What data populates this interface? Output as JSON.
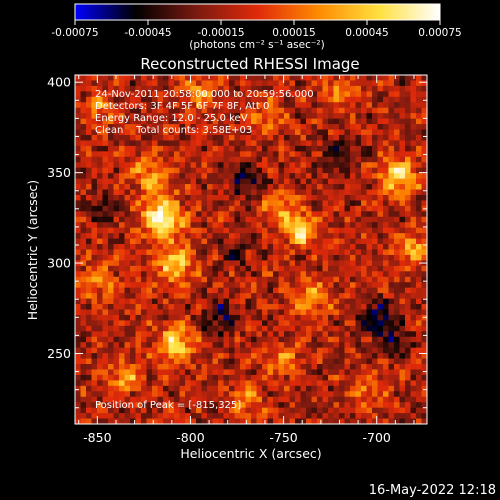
{
  "colorbar": {
    "min": -0.00075,
    "max": 0.00075,
    "tick_values": [
      -0.00075,
      -0.00045,
      -0.00015,
      0.00015,
      0.00045,
      0.00075
    ],
    "tick_labels": [
      "-0.00075",
      "-0.00045",
      "-0.00015",
      "0.00015",
      "0.00045",
      "0.00075"
    ],
    "unit_label": "(photons cm⁻² s⁻¹ asec⁻²)",
    "colors": [
      "#0000ff",
      "#000000",
      "#7a1a10",
      "#e02a0a",
      "#ff8a00",
      "#ffe040",
      "#ffffff"
    ]
  },
  "header": {
    "title": "Reconstructed RHESSI Image"
  },
  "info": {
    "time_range": "24-Nov-2011 20:58:00.000 to 20:59:56.000",
    "detectors": "Detectors: 3F 4F 5F 6F 7F 8F, Att 0",
    "energy_range": "Energy Range: 12.0 - 25.0 keV",
    "method_counts": "Clean    Total counts: 3.58E+03",
    "peak": "Position of Peak = [-815,325]"
  },
  "footer": {
    "date": "16-May-2022 12:18"
  },
  "chart_data": {
    "type": "heatmap",
    "title": "Reconstructed RHESSI Image",
    "xlabel": "Heliocentric X (arcsec)",
    "ylabel": "Heliocentric Y (arcsec)",
    "xlim": [
      -862,
      -673
    ],
    "ylim": [
      211,
      404
    ],
    "x_tick_values": [
      -850,
      -800,
      -750,
      -700
    ],
    "x_tick_labels": [
      "-850",
      "-800",
      "-750",
      "-700"
    ],
    "y_tick_values": [
      250,
      300,
      350,
      400
    ],
    "y_tick_labels": [
      "250",
      "300",
      "350",
      "400"
    ],
    "peak_position": [
      -815,
      325
    ],
    "grid_cols": 64,
    "grid_rows": 64,
    "colormap_range": [
      -0.00075,
      0.00075
    ],
    "hotspots": [
      {
        "x": -815,
        "y": 325,
        "amp": 0.00075,
        "spread": 8
      },
      {
        "x": -808,
        "y": 300,
        "amp": 0.0006,
        "spread": 7
      },
      {
        "x": -740,
        "y": 318,
        "amp": 0.00068,
        "spread": 6
      },
      {
        "x": -752,
        "y": 330,
        "amp": 0.00045,
        "spread": 6
      },
      {
        "x": -688,
        "y": 348,
        "amp": 0.00065,
        "spread": 7
      },
      {
        "x": -680,
        "y": 308,
        "amp": 0.00045,
        "spread": 6
      },
      {
        "x": -808,
        "y": 255,
        "amp": 0.0006,
        "spread": 7
      },
      {
        "x": -835,
        "y": 237,
        "amp": 0.00045,
        "spread": 6
      },
      {
        "x": -822,
        "y": 350,
        "amp": 0.0004,
        "spread": 8
      },
      {
        "x": -795,
        "y": 395,
        "amp": 0.0004,
        "spread": 6
      },
      {
        "x": -848,
        "y": 385,
        "amp": 0.00035,
        "spread": 6
      },
      {
        "x": -735,
        "y": 280,
        "amp": 0.00045,
        "spread": 7
      },
      {
        "x": -750,
        "y": 247,
        "amp": 0.0004,
        "spread": 6
      },
      {
        "x": -770,
        "y": 225,
        "amp": 0.0004,
        "spread": 6
      },
      {
        "x": -705,
        "y": 230,
        "amp": 0.00035,
        "spread": 6
      },
      {
        "x": -850,
        "y": 290,
        "amp": 0.00035,
        "spread": 7
      },
      {
        "x": -720,
        "y": 395,
        "amp": 0.00035,
        "spread": 6
      },
      {
        "x": -760,
        "y": 380,
        "amp": 0.00025,
        "spread": 7
      },
      {
        "x": -770,
        "y": 345,
        "amp": -0.0004,
        "spread": 6
      },
      {
        "x": -785,
        "y": 270,
        "amp": -0.00035,
        "spread": 7
      },
      {
        "x": -700,
        "y": 270,
        "amp": -0.0004,
        "spread": 7
      },
      {
        "x": -845,
        "y": 330,
        "amp": -0.0003,
        "spread": 6
      },
      {
        "x": -720,
        "y": 360,
        "amp": -0.0003,
        "spread": 7
      },
      {
        "x": -775,
        "y": 305,
        "amp": -0.00025,
        "spread": 5
      },
      {
        "x": -690,
        "y": 255,
        "amp": -0.0003,
        "spread": 6
      }
    ]
  }
}
